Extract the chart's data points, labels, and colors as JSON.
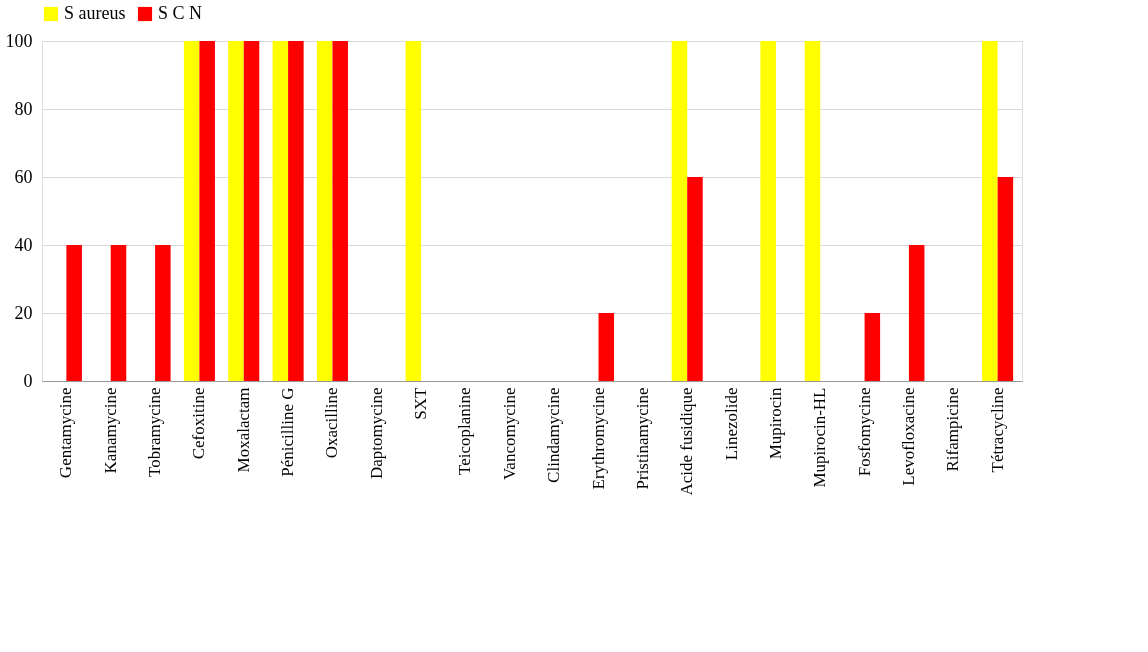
{
  "chart_data": {
    "type": "bar",
    "categories": [
      "Gentamycine",
      "Kanamycine",
      "Tobramycine",
      "Cefoxitine",
      "Moxalactam",
      "Pénicilline G",
      "Oxacilline",
      "Daptomycine",
      "SXT",
      "Teicoplanine",
      "Vancomycine",
      "Clindamycine",
      "Erythromycine",
      "Pristinamycine",
      "Acide fusidique",
      "Linezolide",
      "Mupirocin",
      "Mupirocin-HL",
      "Fosfomycine",
      "Levofloxacine",
      "Rifampicine",
      "Tétracycline"
    ],
    "series": [
      {
        "name": "S aureus",
        "color": "#ffff00",
        "values": [
          0,
          0,
          0,
          100,
          100,
          100,
          100,
          0,
          100,
          0,
          0,
          0,
          0,
          0,
          100,
          0,
          100,
          100,
          0,
          0,
          0,
          100
        ]
      },
      {
        "name": "S C N",
        "color": "#ff0000",
        "values": [
          40,
          40,
          40,
          100,
          100,
          100,
          100,
          0,
          0,
          0,
          0,
          0,
          20,
          0,
          60,
          0,
          0,
          0,
          20,
          40,
          0,
          60
        ]
      }
    ],
    "ylim": [
      0,
      100
    ],
    "yticks": [
      0,
      20,
      40,
      60,
      80,
      100
    ],
    "grid": "y",
    "legend": "top"
  }
}
